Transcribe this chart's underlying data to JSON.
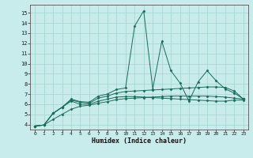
{
  "xlabel": "Humidex (Indice chaleur)",
  "xlim": [
    -0.5,
    23.5
  ],
  "ylim": [
    3.5,
    15.8
  ],
  "xticks": [
    0,
    1,
    2,
    3,
    4,
    5,
    6,
    7,
    8,
    9,
    10,
    11,
    12,
    13,
    14,
    15,
    16,
    17,
    18,
    19,
    20,
    21,
    22,
    23
  ],
  "yticks": [
    4,
    5,
    6,
    7,
    8,
    9,
    10,
    11,
    12,
    13,
    14,
    15
  ],
  "bg_color": "#c8ecec",
  "line_color": "#1a6b5a",
  "grid_color": "#a8d8d0",
  "series": [
    [
      3.85,
      3.95,
      5.1,
      5.7,
      6.5,
      6.25,
      6.2,
      6.8,
      7.0,
      7.45,
      7.6,
      13.7,
      15.2,
      7.5,
      12.2,
      9.3,
      8.1,
      6.3,
      8.2,
      9.3,
      8.3,
      7.5,
      7.1,
      6.5
    ],
    [
      3.85,
      3.95,
      5.1,
      5.7,
      6.4,
      6.2,
      6.1,
      6.6,
      6.8,
      7.1,
      7.25,
      7.3,
      7.35,
      7.4,
      7.45,
      7.5,
      7.55,
      7.6,
      7.65,
      7.7,
      7.7,
      7.65,
      7.3,
      6.5
    ],
    [
      3.85,
      3.95,
      5.1,
      5.7,
      6.3,
      6.0,
      6.0,
      6.3,
      6.5,
      6.7,
      6.75,
      6.75,
      6.7,
      6.65,
      6.6,
      6.55,
      6.5,
      6.45,
      6.4,
      6.35,
      6.3,
      6.3,
      6.4,
      6.4
    ],
    [
      3.85,
      3.95,
      4.5,
      5.0,
      5.5,
      5.8,
      5.9,
      6.1,
      6.25,
      6.45,
      6.55,
      6.6,
      6.65,
      6.7,
      6.75,
      6.8,
      6.8,
      6.8,
      6.8,
      6.8,
      6.75,
      6.7,
      6.6,
      6.5
    ]
  ]
}
